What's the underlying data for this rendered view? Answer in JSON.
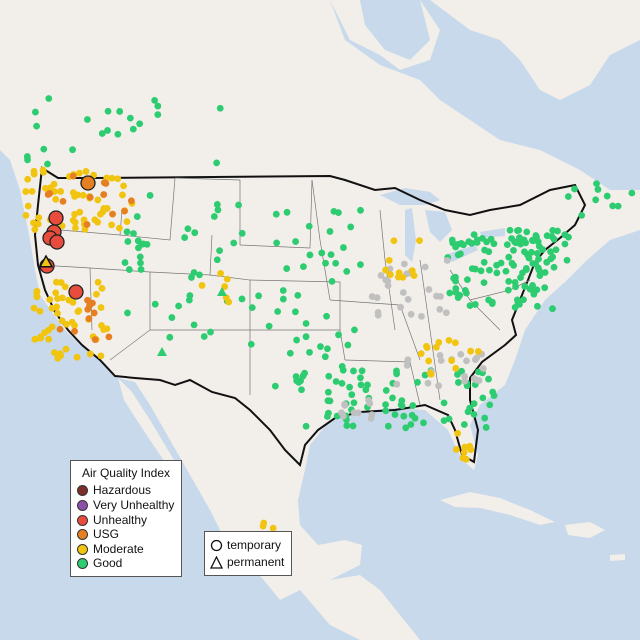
{
  "legend": {
    "title": "Air Quality Index",
    "categories": [
      {
        "label": "Hazardous",
        "color": "#7e2e2a"
      },
      {
        "label": "Very Unhealthy",
        "color": "#8e4fa8"
      },
      {
        "label": "Unhealthy",
        "color": "#e74c3c"
      },
      {
        "label": "USG",
        "color": "#e67e22"
      },
      {
        "label": "Moderate",
        "color": "#f1c40f"
      },
      {
        "label": "Good",
        "color": "#2ecc71"
      }
    ],
    "no_data_color": "#c0c0c0"
  },
  "monitor_types": [
    {
      "label": "temporary",
      "shape": "circle"
    },
    {
      "label": "permanent",
      "shape": "triangle"
    }
  ],
  "colors": {
    "ocean": "#c7d9ea",
    "land": "#f2eeea",
    "mountain_shade": "#e2ddd8",
    "border": "#111111"
  }
}
